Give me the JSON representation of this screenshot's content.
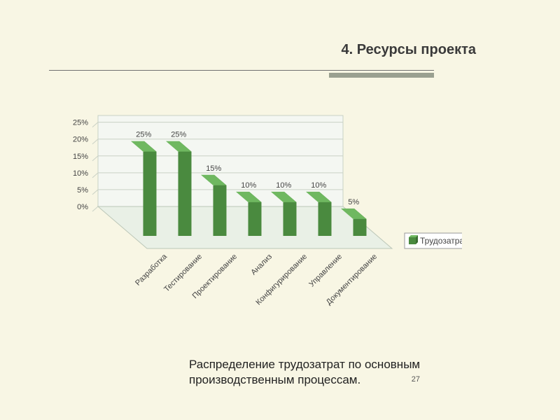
{
  "slide": {
    "background_color": "#f8f6e4",
    "rule_thin_color": "#707070",
    "rule_thin_width": 550,
    "rule_thick_color": "#9aa090",
    "rule_thick_left": 470,
    "rule_thick_width": 150,
    "title": "4. Ресурсы проекта",
    "title_color": "#3a3a3a",
    "caption": "Распределение трудозатрат по основным производственным процессам.",
    "caption_color": "#222222",
    "page_number": "27"
  },
  "chart": {
    "type": "bar3d",
    "categories": [
      "Разработка",
      "Тестирование",
      "Проектирование",
      "Анализ",
      "Конфигурирование",
      "Управление",
      "Документирование"
    ],
    "values": [
      25,
      25,
      15,
      10,
      10,
      10,
      5
    ],
    "value_labels": [
      "25%",
      "25%",
      "15%",
      "10%",
      "10%",
      "10%",
      "5%"
    ],
    "legend": "Трудозатраты",
    "y_ticks": [
      0,
      5,
      10,
      15,
      20,
      25
    ],
    "y_tick_labels": [
      "0%",
      "5%",
      "10%",
      "15%",
      "20%",
      "25%"
    ],
    "ymax": 27,
    "bar_front_color": "#4a8a3f",
    "bar_top_color": "#6fb860",
    "bar_side_color": "#3a6d31",
    "floor_color": "#e9f0e6",
    "floor_border": "#bcc7b8",
    "back_wall_color": "#f4f7f2",
    "grid_color": "#c9d1c5",
    "label_fontsize": 11,
    "tick_fontsize": 11,
    "category_fontsize": 11,
    "legend_fontsize": 12,
    "legend_border": "#9a9a9a",
    "text_color": "#444444"
  }
}
